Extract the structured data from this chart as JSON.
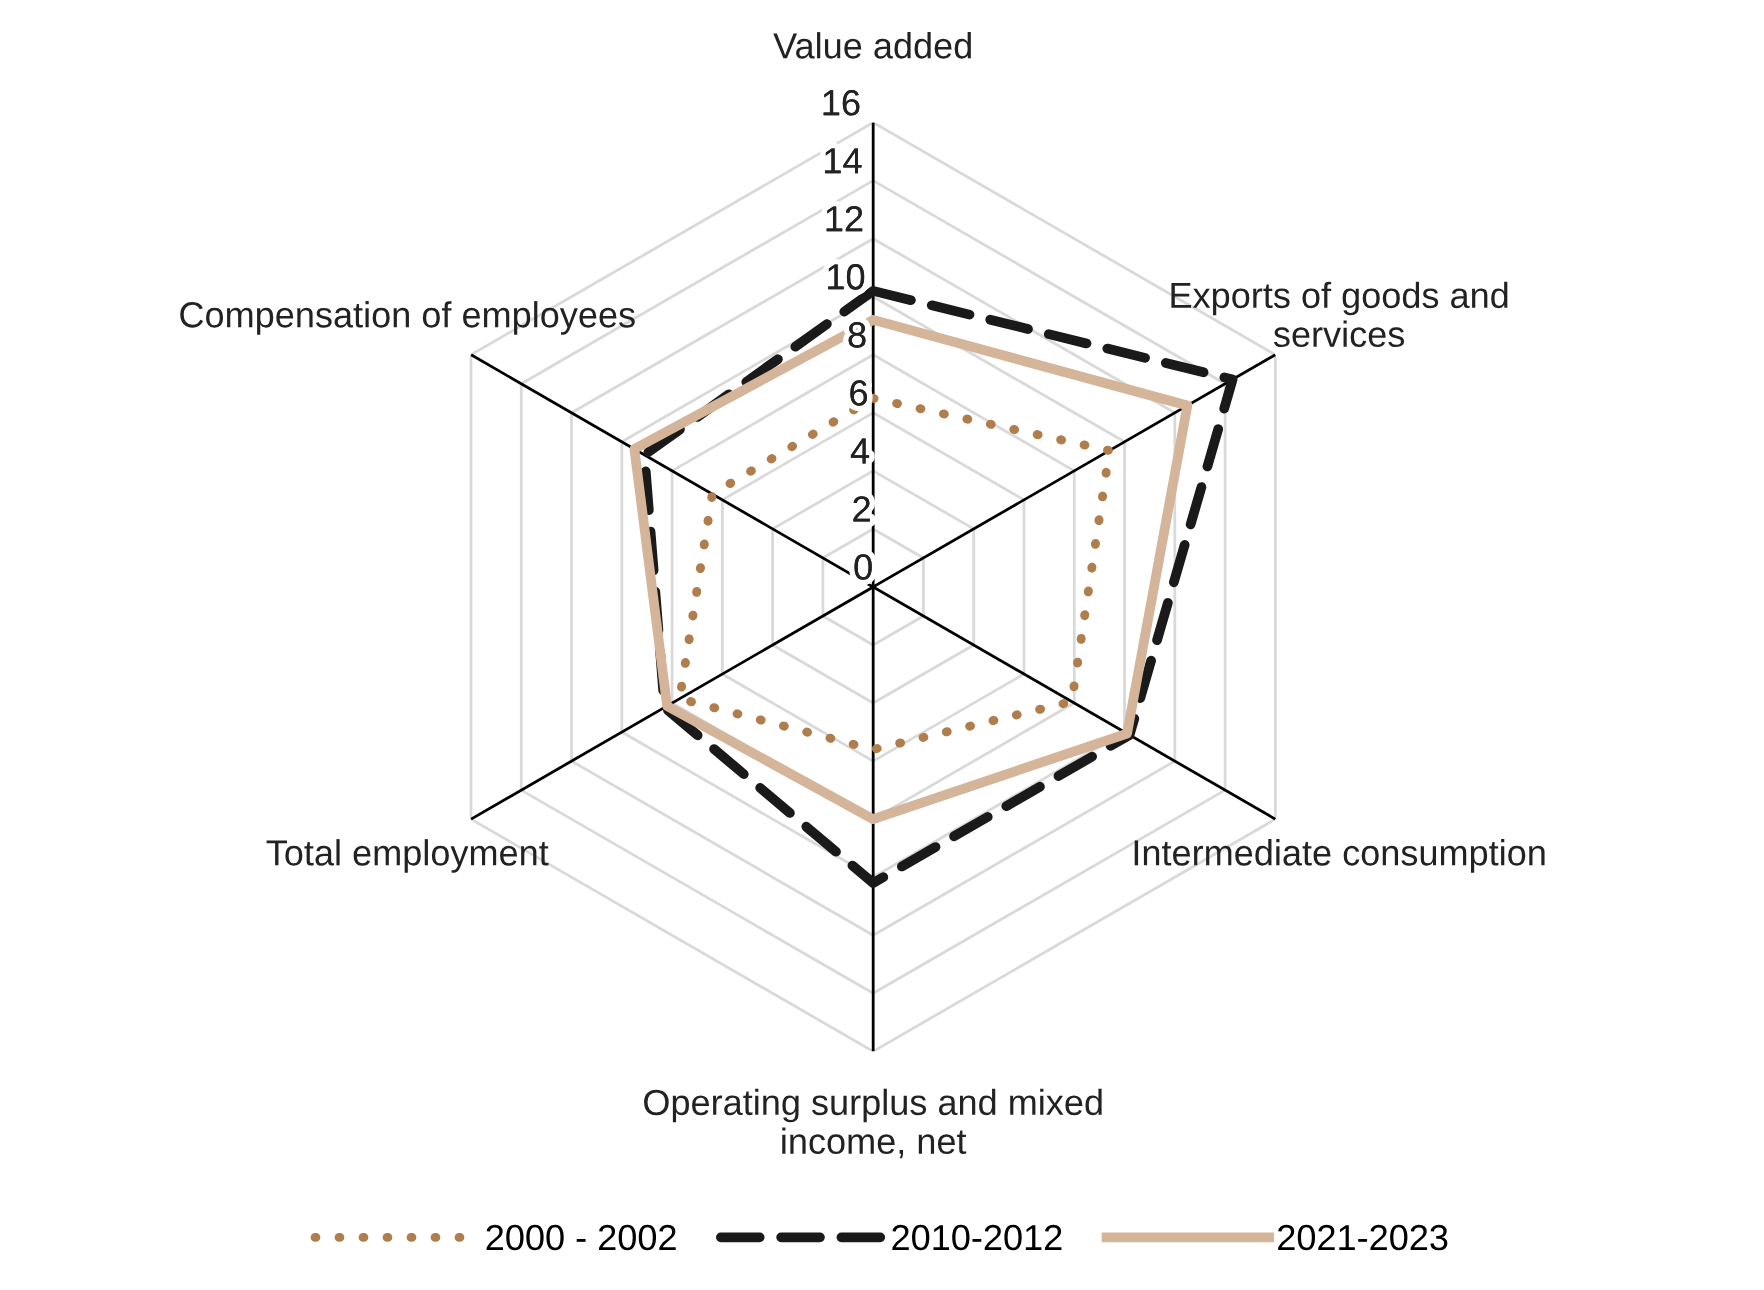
{
  "chart_data": {
    "type": "radar",
    "categories": [
      "Value added",
      "Exports of goods and\nservices",
      "Intermediate consumption",
      "Operating surplus and mixed\nincome, net",
      "Total employment",
      "Compensation of employees"
    ],
    "series": [
      {
        "name": "2000 - 2002",
        "color": "#b07d4c",
        "line_style": "dotted",
        "values": [
          6.5,
          9.4,
          7.9,
          5.6,
          7.7,
          6.4
        ]
      },
      {
        "name": "2010-2012",
        "color": "#1a1a1a",
        "line_style": "dashed",
        "values": [
          10.2,
          14.3,
          10.2,
          10.2,
          8.3,
          9.1
        ]
      },
      {
        "name": "2021-2023",
        "color": "#d4b59a",
        "line_style": "solid",
        "values": [
          9.2,
          12.5,
          10.1,
          8.0,
          8.2,
          9.5
        ]
      }
    ],
    "ylim": [
      0,
      16
    ],
    "yticks": [
      0,
      2,
      4,
      6,
      8,
      10,
      12,
      14,
      16
    ],
    "grid": true,
    "legend": "bottom",
    "marker": "none"
  }
}
